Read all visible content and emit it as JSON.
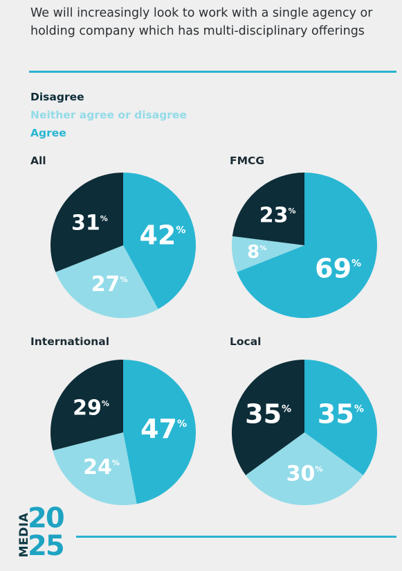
{
  "title": "We will increasingly look to work with a single agency or holding company which has multi-disciplinary offerings",
  "colors": {
    "Disagree": "#0d2d38",
    "Neither agree or disagree": "#93dbe8",
    "Agree": "#29b6d3"
  },
  "legend": {
    "items": [
      "Disagree",
      "Neither agree or disagree",
      "Agree"
    ]
  },
  "logo": {
    "top": "MEDIA",
    "year_top": "20",
    "year_bottom": "25"
  },
  "chart_data": [
    {
      "type": "pie",
      "title": "All",
      "categories": [
        "Agree",
        "Neither agree or disagree",
        "Disagree"
      ],
      "values": [
        42,
        27,
        31
      ],
      "labels": [
        "42",
        "27",
        "31"
      ],
      "unit": "%"
    },
    {
      "type": "pie",
      "title": "FMCG",
      "categories": [
        "Agree",
        "Neither agree or disagree",
        "Disagree"
      ],
      "values": [
        69,
        8,
        23
      ],
      "labels": [
        "69",
        "8",
        "23"
      ],
      "unit": "%"
    },
    {
      "type": "pie",
      "title": "International",
      "categories": [
        "Agree",
        "Neither agree or disagree",
        "Disagree"
      ],
      "values": [
        47,
        24,
        29
      ],
      "labels": [
        "47",
        "24",
        "29"
      ],
      "unit": "%"
    },
    {
      "type": "pie",
      "title": "Local",
      "categories": [
        "Agree",
        "Neither agree or disagree",
        "Disagree"
      ],
      "values": [
        35,
        30,
        35
      ],
      "labels": [
        "35",
        "30",
        "35"
      ],
      "unit": "%"
    }
  ]
}
